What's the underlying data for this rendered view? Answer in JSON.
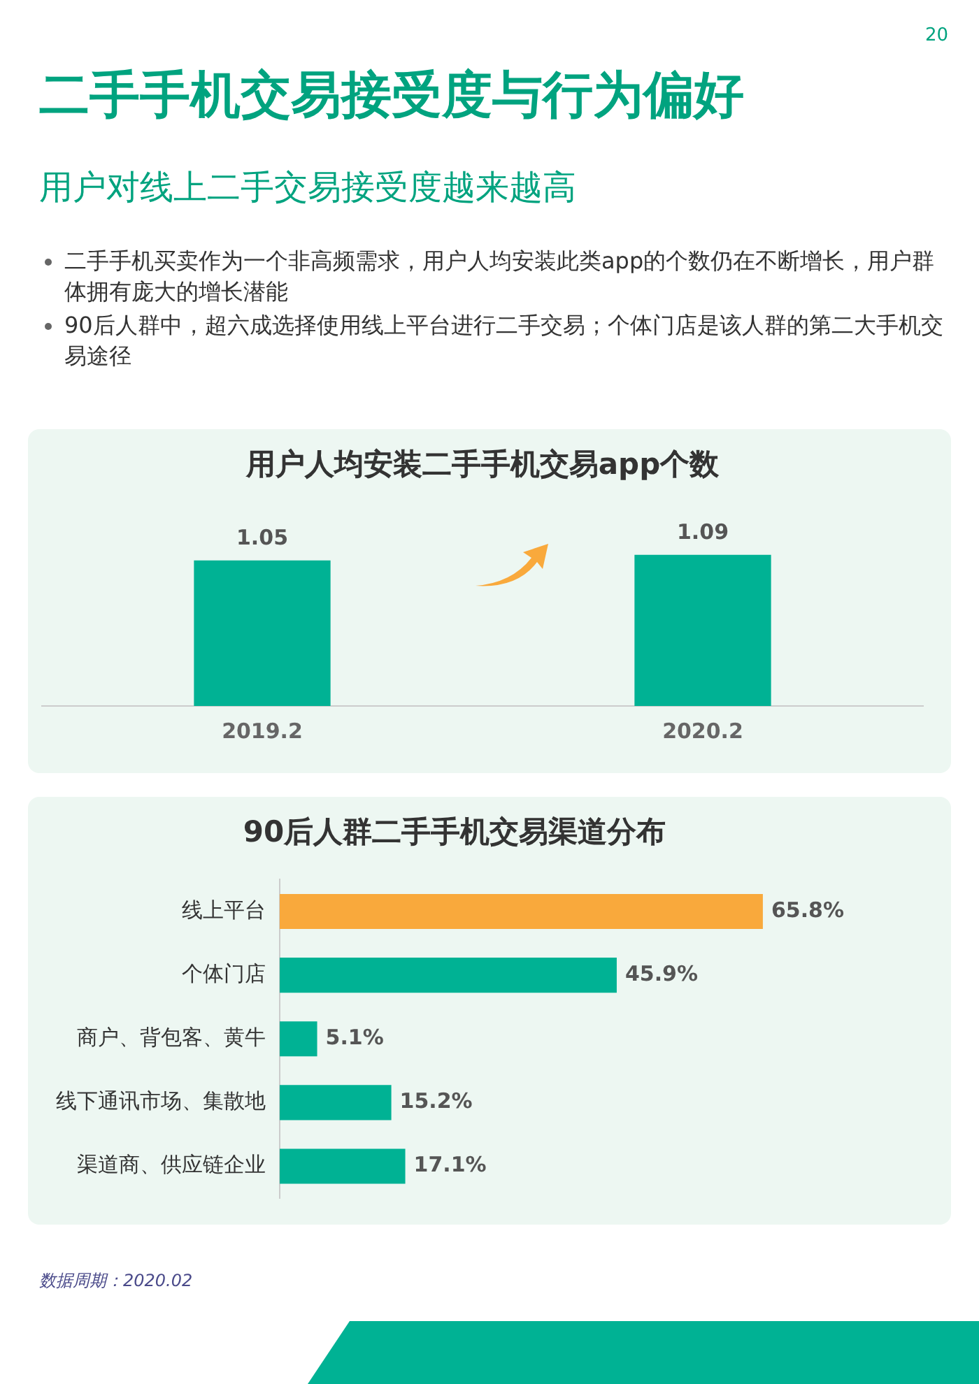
{
  "chart_data": [
    {
      "type": "other",
      "title": "二手手机交易接受度与行为偏好",
      "subtitle": "用户对线上二手交易接受度越来越高",
      "annotations": [
        "20",
        "二手手机买卖作为一个非高频需求，用户人均安装此类app的个数仍在不断增长，用户群体拥有庞大的增长潜能",
        "90后人群中，超六成选择使用线上平台进行二手交易；个体门店是该人群的第二大手机交易途径"
      ]
    },
    {
      "type": "bar",
      "title": "用户人均安装二手手机交易app个数",
      "categories": [
        "2019.2",
        "2020.2"
      ],
      "values": [
        1.05,
        1.09
      ],
      "color": "#00b294",
      "data_labels": true,
      "grid": false,
      "tick_labels": "x"
    },
    {
      "type": "bar",
      "orientation": "horizontal",
      "title": "90后人群二手手机交易渠道分布",
      "categories": [
        "线上平台",
        "个体门店",
        "商户、背包客、黄牛",
        "线下通讯市场、集散地",
        "渠道商、供应链企业"
      ],
      "values": [
        65.8,
        45.9,
        5.1,
        15.2,
        17.1
      ],
      "colors": [
        "#f9a93c",
        "#00b294",
        "#00b294",
        "#00b294",
        "#00b294"
      ],
      "value_labels": [
        "65.8%",
        "45.9%",
        "5.1%",
        "15.2%",
        "17.1%"
      ],
      "grid": false,
      "tick_labels": "y",
      "annotations": [
        "数据周期：2020.02"
      ]
    }
  ]
}
